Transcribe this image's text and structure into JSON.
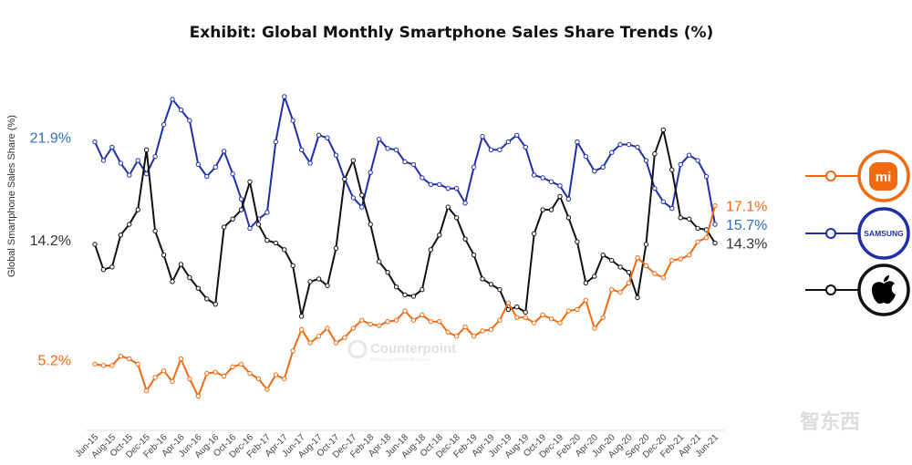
{
  "chart_data": {
    "type": "line",
    "title": "Exhibit: Global Monthly Smartphone Sales Share Trends (%)",
    "ylabel": "Global Smartphone Sales Share (%)",
    "xlabel": "",
    "grid": false,
    "legend_placement": "right",
    "tick_labels": [
      "Jun-15",
      "Aug-15",
      "Oct-15",
      "Dec-15",
      "Feb-16",
      "Apr-16",
      "Jun-16",
      "Aug-16",
      "Oct-16",
      "Dec-16",
      "Feb-17",
      "Apr-17",
      "Jun-17",
      "Aug-17",
      "Oct-17",
      "Dec-17",
      "Feb-18",
      "Apr-18",
      "Jun-18",
      "Aug-18",
      "Oct-18",
      "Dec-18",
      "Feb-19",
      "Apr-19",
      "Jun-19",
      "Aug-19",
      "Oct-19",
      "Dec-19",
      "Feb-20",
      "Apr-20",
      "Jun-20",
      "Aug-20",
      "Sep-20",
      "Dec-20",
      "Feb-21",
      "Apr-21",
      "Jun-21"
    ],
    "x": [
      "Jun-15",
      "Jul-15",
      "Aug-15",
      "Sep-15",
      "Oct-15",
      "Nov-15",
      "Dec-15",
      "Jan-16",
      "Feb-16",
      "Mar-16",
      "Apr-16",
      "May-16",
      "Jun-16",
      "Jul-16",
      "Aug-16",
      "Sep-16",
      "Oct-16",
      "Nov-16",
      "Dec-16",
      "Jan-17",
      "Feb-17",
      "Mar-17",
      "Apr-17",
      "May-17",
      "Jun-17",
      "Jul-17",
      "Aug-17",
      "Sep-17",
      "Oct-17",
      "Nov-17",
      "Dec-17",
      "Jan-18",
      "Feb-18",
      "Mar-18",
      "Apr-18",
      "May-18",
      "Jun-18",
      "Jul-18",
      "Aug-18",
      "Sep-18",
      "Oct-18",
      "Nov-18",
      "Dec-18",
      "Jan-19",
      "Feb-19",
      "Mar-19",
      "Apr-19",
      "May-19",
      "Jun-19",
      "Jul-19",
      "Aug-19",
      "Sep-19",
      "Oct-19",
      "Nov-19",
      "Dec-19",
      "Jan-20",
      "Feb-20",
      "Mar-20",
      "Apr-20",
      "May-20",
      "Jun-20",
      "Jul-20",
      "Aug-20",
      "Sep-20",
      "Oct-20",
      "Nov-20",
      "Dec-20",
      "Jan-21",
      "Feb-21",
      "Mar-21",
      "Apr-21",
      "May-21",
      "Jun-21"
    ],
    "series": [
      {
        "key": "samsung",
        "color": "#1f2fa8",
        "label_color": "#2f6fbf",
        "logo": "SAMSUNG",
        "start_label": "21.9%",
        "end_label": "15.7%",
        "values": [
          21.9,
          20.5,
          21.5,
          20.3,
          19.4,
          20.5,
          19.5,
          20.8,
          23.2,
          25.1,
          24.3,
          23.5,
          20.2,
          19.3,
          20.0,
          21.2,
          19.5,
          17.6,
          15.4,
          16.1,
          16.6,
          21.9,
          25.3,
          23.5,
          21.3,
          20.3,
          22.4,
          22.2,
          20.9,
          19.1,
          17.7,
          17.0,
          19.6,
          22.1,
          21.4,
          21.3,
          20.4,
          20.2,
          19.2,
          18.7,
          18.7,
          18.4,
          18.4,
          17.3,
          20.0,
          22.3,
          21.3,
          21.3,
          21.9,
          22.4,
          21.5,
          19.4,
          19.2,
          18.9,
          18.6,
          17.6,
          21.9,
          20.8,
          19.7,
          20.0,
          21.1,
          21.7,
          21.7,
          21.5,
          20.5,
          18.4,
          17.4,
          16.9,
          20.2,
          20.9,
          20.5,
          19.3,
          15.7
        ]
      },
      {
        "key": "apple",
        "color": "#111111",
        "label_color": "#333333",
        "logo": "apple",
        "start_label": "14.2%",
        "end_label": "14.3%",
        "values": [
          14.2,
          12.3,
          12.5,
          14.9,
          15.7,
          16.8,
          21.3,
          15.2,
          13.4,
          11.4,
          12.7,
          11.7,
          10.9,
          10.1,
          9.7,
          15.5,
          16.1,
          16.8,
          18.9,
          15.7,
          14.5,
          14.3,
          13.8,
          12.6,
          8.8,
          11.4,
          11.6,
          11.1,
          13.9,
          19.1,
          20.5,
          17.9,
          15.7,
          12.9,
          12.1,
          11.0,
          10.4,
          10.3,
          10.8,
          13.8,
          14.9,
          17.0,
          16.2,
          14.6,
          13.4,
          11.6,
          11.2,
          10.8,
          9.3,
          9.5,
          9.1,
          15.0,
          16.8,
          16.8,
          17.8,
          16.2,
          14.4,
          11.3,
          11.8,
          13.4,
          13.0,
          12.5,
          12.1,
          10.2,
          14.2,
          21.0,
          22.8,
          19.8,
          16.2,
          16.1,
          15.4,
          15.3,
          14.3
        ]
      },
      {
        "key": "xiaomi",
        "color": "#f26a10",
        "label_color": "#f26a10",
        "logo": "mi",
        "start_label": "5.2%",
        "end_label": "17.1%",
        "values": [
          5.2,
          5.1,
          5.1,
          5.8,
          5.6,
          5.2,
          3.2,
          4.2,
          4.7,
          3.9,
          5.6,
          4.1,
          2.8,
          4.5,
          4.6,
          4.3,
          5.0,
          5.2,
          4.5,
          4.1,
          3.3,
          4.4,
          4.1,
          6.2,
          7.8,
          6.8,
          7.3,
          7.9,
          6.8,
          7.2,
          7.9,
          8.5,
          8.2,
          8.1,
          8.4,
          8.5,
          9.2,
          8.5,
          8.9,
          8.4,
          8.4,
          7.6,
          7.3,
          8.0,
          7.3,
          7.7,
          7.8,
          8.5,
          9.8,
          8.7,
          8.7,
          8.3,
          8.9,
          8.6,
          8.3,
          9.2,
          9.3,
          10.0,
          7.9,
          8.7,
          10.8,
          10.6,
          11.3,
          13.2,
          12.6,
          12.0,
          11.7,
          13.0,
          13.1,
          13.4,
          14.4,
          14.7,
          17.1
        ]
      }
    ],
    "watermark": "Counterpoint",
    "watermark_sub": "Technology Market Research",
    "corner_logo": "智东西"
  }
}
